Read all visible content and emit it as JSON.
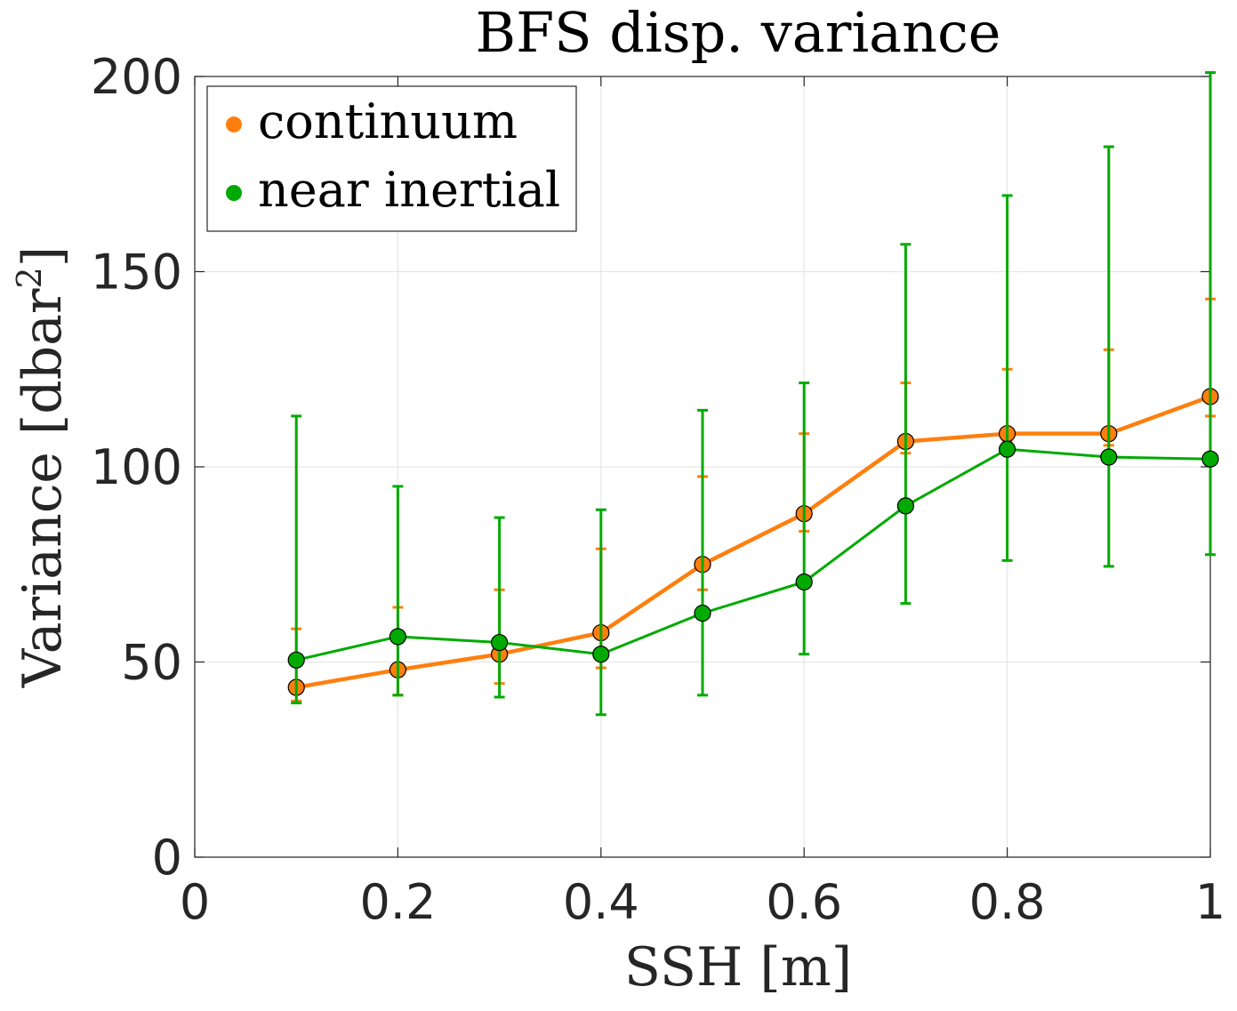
{
  "chart_data": {
    "type": "line",
    "title": "BFS disp. variance",
    "xlabel": "SSH [m]",
    "ylabel": "Variance [dbar",
    "ylabel_superscript": "2",
    "ylabel_close": "]",
    "xlim": [
      0,
      1
    ],
    "ylim": [
      0,
      200
    ],
    "xticks": [
      0,
      0.2,
      0.4,
      0.6,
      0.8,
      1
    ],
    "xtick_labels": [
      "0",
      "0.2",
      "0.4",
      "0.6",
      "0.8",
      "1"
    ],
    "yticks": [
      0,
      50,
      100,
      150,
      200
    ],
    "ytick_labels": [
      "0",
      "50",
      "100",
      "150",
      "200"
    ],
    "grid": true,
    "legend_location": "top-left",
    "x": [
      0.1,
      0.2,
      0.3,
      0.4,
      0.5,
      0.6,
      0.7,
      0.8,
      0.9,
      1.0
    ],
    "series": [
      {
        "name": "continuum",
        "color": "#ff7f0e",
        "values": [
          43.5,
          48,
          52,
          57.5,
          75,
          88,
          106.5,
          108.5,
          108.5,
          118
        ],
        "err_low": [
          40,
          41.5,
          44.5,
          48.5,
          68.5,
          83.5,
          103.5,
          106.5,
          105.5,
          113
        ],
        "err_high": [
          58.5,
          64,
          68.5,
          79,
          97.5,
          108.5,
          121.5,
          125,
          130,
          143
        ]
      },
      {
        "name": "near inertial",
        "color": "#00aa00",
        "values": [
          50.5,
          56.5,
          55,
          52,
          62.5,
          70.5,
          90,
          104.5,
          102.5,
          102
        ],
        "err_low": [
          39.5,
          41.5,
          41,
          36.5,
          41.5,
          52,
          65,
          76,
          74.5,
          77.5
        ],
        "err_high": [
          113,
          95,
          87,
          89,
          114.5,
          121.5,
          157,
          169.5,
          182,
          201
        ]
      }
    ]
  }
}
